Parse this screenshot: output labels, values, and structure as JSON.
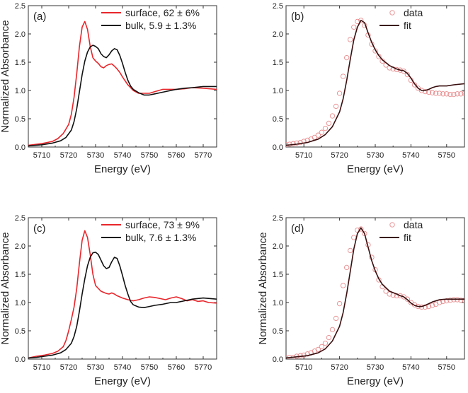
{
  "colors": {
    "surface": "#e8262b",
    "bulk": "#111111",
    "data": "#e88a8c",
    "fit": "#3a0f0f",
    "axis": "#333333"
  },
  "chart_data": [
    {
      "id": "a",
      "type": "line",
      "panel_label": "(a)",
      "xlabel": "Energy (eV)",
      "ylabel": "Normalized Absorbance",
      "xlim": [
        5705,
        5775
      ],
      "ylim": [
        0,
        2.5
      ],
      "xticks": [
        5710,
        5720,
        5730,
        5740,
        5750,
        5760,
        5770
      ],
      "yticks": [
        0.0,
        0.5,
        1.0,
        1.5,
        2.0,
        2.5
      ],
      "legend": "top-right",
      "series": [
        {
          "name": "surface, 62 ± 6%",
          "style": "line",
          "color_key": "surface",
          "x": [
            5705,
            5710,
            5714,
            5716,
            5718,
            5720,
            5721,
            5722,
            5723,
            5724,
            5725,
            5726,
            5727,
            5728,
            5729,
            5730,
            5731,
            5732,
            5733,
            5734,
            5735,
            5736,
            5737,
            5738,
            5739,
            5740,
            5742,
            5744,
            5746,
            5748,
            5750,
            5752,
            5755,
            5758,
            5760,
            5763,
            5766,
            5770,
            5775
          ],
          "y": [
            0.03,
            0.06,
            0.1,
            0.15,
            0.24,
            0.4,
            0.58,
            0.88,
            1.3,
            1.78,
            2.12,
            2.22,
            2.08,
            1.78,
            1.58,
            1.52,
            1.48,
            1.42,
            1.4,
            1.44,
            1.46,
            1.47,
            1.43,
            1.38,
            1.32,
            1.24,
            1.1,
            1.0,
            0.95,
            0.95,
            0.95,
            0.98,
            1.02,
            1.02,
            1.02,
            1.03,
            1.05,
            1.04,
            1.02
          ]
        },
        {
          "name": "bulk, 5.9 ± 1.3%",
          "style": "line",
          "color_key": "bulk",
          "x": [
            5705,
            5710,
            5714,
            5717,
            5719,
            5721,
            5722,
            5723,
            5724,
            5725,
            5726,
            5727,
            5728,
            5729,
            5730,
            5731,
            5732,
            5733,
            5734,
            5735,
            5736,
            5737,
            5738,
            5739,
            5740,
            5741,
            5742,
            5743,
            5744,
            5746,
            5748,
            5750,
            5752,
            5755,
            5758,
            5760,
            5763,
            5766,
            5770,
            5775
          ],
          "y": [
            0.02,
            0.04,
            0.07,
            0.11,
            0.17,
            0.3,
            0.45,
            0.68,
            0.98,
            1.28,
            1.52,
            1.68,
            1.77,
            1.8,
            1.78,
            1.74,
            1.65,
            1.6,
            1.58,
            1.63,
            1.7,
            1.74,
            1.72,
            1.62,
            1.48,
            1.32,
            1.18,
            1.08,
            1.02,
            0.96,
            0.92,
            0.92,
            0.94,
            0.97,
            1.0,
            1.02,
            1.04,
            1.05,
            1.07,
            1.07
          ]
        }
      ]
    },
    {
      "id": "b",
      "type": "scatter",
      "panel_label": "(b)",
      "xlabel": "Energy (eV)",
      "ylabel": "",
      "xlim": [
        5705,
        5755
      ],
      "ylim": [
        0,
        2.5
      ],
      "xticks": [
        5710,
        5720,
        5730,
        5740,
        5750
      ],
      "yticks": [
        0.0,
        0.5,
        1.0,
        1.5,
        2.0,
        2.5
      ],
      "legend": "top-right",
      "series": [
        {
          "name": "data",
          "style": "markers",
          "color_key": "data",
          "x": [
            5705,
            5706,
            5707,
            5708,
            5709,
            5710,
            5711,
            5712,
            5713,
            5714,
            5715,
            5716,
            5717,
            5718,
            5719,
            5720,
            5721,
            5722,
            5723,
            5724,
            5725,
            5726,
            5727,
            5728,
            5729,
            5730,
            5731,
            5732,
            5733,
            5734,
            5735,
            5736,
            5737,
            5738,
            5739,
            5740,
            5741,
            5742,
            5743,
            5744,
            5745,
            5746,
            5747,
            5748,
            5749,
            5750,
            5751,
            5752,
            5753,
            5754,
            5755
          ],
          "y": [
            0.04,
            0.05,
            0.06,
            0.07,
            0.08,
            0.1,
            0.12,
            0.14,
            0.17,
            0.21,
            0.26,
            0.33,
            0.42,
            0.55,
            0.72,
            0.95,
            1.25,
            1.58,
            1.9,
            2.12,
            2.22,
            2.24,
            2.15,
            1.98,
            1.82,
            1.7,
            1.6,
            1.52,
            1.45,
            1.4,
            1.38,
            1.37,
            1.36,
            1.34,
            1.28,
            1.18,
            1.1,
            1.04,
            1.0,
            0.98,
            0.97,
            0.96,
            0.95,
            0.95,
            0.94,
            0.94,
            0.93,
            0.93,
            0.94,
            0.94,
            0.95
          ]
        },
        {
          "name": "fit",
          "style": "line",
          "color_key": "fit",
          "x": [
            5705,
            5708,
            5711,
            5714,
            5716,
            5718,
            5720,
            5721,
            5722,
            5723,
            5724,
            5725,
            5726,
            5727,
            5728,
            5729,
            5730,
            5731,
            5732,
            5734,
            5736,
            5737,
            5738,
            5739,
            5740,
            5741,
            5742,
            5743,
            5744,
            5745,
            5746,
            5747,
            5748,
            5750,
            5752,
            5755
          ],
          "y": [
            0.03,
            0.05,
            0.08,
            0.14,
            0.22,
            0.36,
            0.62,
            0.85,
            1.18,
            1.55,
            1.9,
            2.12,
            2.24,
            2.2,
            2.02,
            1.85,
            1.72,
            1.62,
            1.54,
            1.44,
            1.38,
            1.36,
            1.35,
            1.3,
            1.22,
            1.12,
            1.04,
            1.0,
            1.0,
            1.02,
            1.05,
            1.07,
            1.08,
            1.08,
            1.1,
            1.12
          ]
        }
      ]
    },
    {
      "id": "c",
      "type": "line",
      "panel_label": "(c)",
      "xlabel": "Energy (eV)",
      "ylabel": "Normalized Absorbance",
      "xlim": [
        5705,
        5775
      ],
      "ylim": [
        0,
        2.5
      ],
      "xticks": [
        5710,
        5720,
        5730,
        5740,
        5750,
        5760,
        5770
      ],
      "yticks": [
        0.0,
        0.5,
        1.0,
        1.5,
        2.0,
        2.5
      ],
      "legend": "top-right",
      "series": [
        {
          "name": "surface, 73 ± 9%",
          "style": "line",
          "color_key": "surface",
          "x": [
            5705,
            5708,
            5711,
            5714,
            5716,
            5718,
            5719,
            5720,
            5721,
            5722,
            5723,
            5724,
            5725,
            5726,
            5727,
            5728,
            5729,
            5730,
            5731,
            5732,
            5733,
            5734,
            5735,
            5736,
            5737,
            5738,
            5740,
            5742,
            5744,
            5746,
            5748,
            5750,
            5752,
            5754,
            5756,
            5758,
            5760,
            5762,
            5764,
            5766,
            5768,
            5770,
            5772,
            5775
          ],
          "y": [
            0.02,
            0.05,
            0.07,
            0.1,
            0.14,
            0.22,
            0.33,
            0.5,
            0.7,
            0.92,
            1.25,
            1.7,
            2.1,
            2.27,
            2.15,
            1.85,
            1.5,
            1.3,
            1.25,
            1.2,
            1.18,
            1.16,
            1.15,
            1.17,
            1.15,
            1.12,
            1.08,
            1.05,
            1.03,
            1.05,
            1.08,
            1.1,
            1.09,
            1.07,
            1.05,
            1.08,
            1.1,
            1.07,
            1.03,
            1.05,
            1.02,
            1.03,
            1.0,
            0.99
          ]
        },
        {
          "name": "bulk, 7.6 ± 1.3%",
          "style": "line",
          "color_key": "bulk",
          "x": [
            5705,
            5708,
            5711,
            5714,
            5717,
            5719,
            5721,
            5722,
            5723,
            5724,
            5725,
            5726,
            5727,
            5728,
            5729,
            5730,
            5731,
            5732,
            5733,
            5734,
            5735,
            5736,
            5737,
            5738,
            5739,
            5740,
            5741,
            5742,
            5743,
            5744,
            5746,
            5748,
            5750,
            5752,
            5755,
            5758,
            5760,
            5763,
            5766,
            5770,
            5775
          ],
          "y": [
            0.02,
            0.03,
            0.05,
            0.07,
            0.11,
            0.17,
            0.28,
            0.4,
            0.58,
            0.85,
            1.15,
            1.42,
            1.65,
            1.8,
            1.88,
            1.89,
            1.85,
            1.75,
            1.65,
            1.6,
            1.62,
            1.72,
            1.8,
            1.78,
            1.65,
            1.48,
            1.3,
            1.15,
            1.02,
            0.96,
            0.92,
            0.91,
            0.93,
            0.95,
            0.97,
            1.0,
            1.0,
            1.03,
            1.06,
            1.08,
            1.06
          ]
        }
      ]
    },
    {
      "id": "d",
      "type": "scatter",
      "panel_label": "(d)",
      "xlabel": "Energy (eV)",
      "ylabel": "Normalized Absorbance",
      "xlim": [
        5705,
        5755
      ],
      "ylim": [
        0,
        2.5
      ],
      "xticks": [
        5710,
        5720,
        5730,
        5740,
        5750
      ],
      "yticks": [
        0.0,
        0.5,
        1.0,
        1.5,
        2.0,
        2.5
      ],
      "legend": "top-right",
      "series": [
        {
          "name": "data",
          "style": "markers",
          "color_key": "data",
          "x": [
            5705,
            5706,
            5707,
            5708,
            5709,
            5710,
            5711,
            5712,
            5713,
            5714,
            5715,
            5716,
            5717,
            5718,
            5719,
            5720,
            5721,
            5722,
            5723,
            5724,
            5725,
            5726,
            5727,
            5728,
            5729,
            5730,
            5731,
            5732,
            5733,
            5734,
            5735,
            5736,
            5737,
            5738,
            5739,
            5740,
            5741,
            5742,
            5743,
            5744,
            5745,
            5746,
            5747,
            5748,
            5749,
            5750,
            5751,
            5752,
            5753,
            5754,
            5755
          ],
          "y": [
            0.02,
            0.03,
            0.03,
            0.05,
            0.06,
            0.07,
            0.09,
            0.11,
            0.14,
            0.17,
            0.22,
            0.28,
            0.38,
            0.52,
            0.72,
            0.98,
            1.3,
            1.62,
            1.92,
            2.15,
            2.28,
            2.3,
            2.22,
            2.02,
            1.8,
            1.58,
            1.4,
            1.28,
            1.2,
            1.15,
            1.13,
            1.12,
            1.12,
            1.1,
            1.06,
            1.0,
            0.96,
            0.93,
            0.92,
            0.92,
            0.93,
            0.95,
            0.97,
            1.0,
            1.02,
            1.03,
            1.04,
            1.05,
            1.05,
            1.04,
            1.04
          ]
        },
        {
          "name": "fit",
          "style": "line",
          "color_key": "fit",
          "x": [
            5705,
            5708,
            5711,
            5714,
            5716,
            5718,
            5720,
            5721,
            5722,
            5723,
            5724,
            5725,
            5726,
            5727,
            5728,
            5729,
            5730,
            5731,
            5732,
            5734,
            5736,
            5737,
            5738,
            5739,
            5740,
            5741,
            5742,
            5743,
            5744,
            5745,
            5746,
            5748,
            5750,
            5752,
            5755
          ],
          "y": [
            0.02,
            0.04,
            0.06,
            0.11,
            0.18,
            0.32,
            0.58,
            0.82,
            1.16,
            1.55,
            1.95,
            2.22,
            2.32,
            2.22,
            1.98,
            1.74,
            1.56,
            1.42,
            1.32,
            1.2,
            1.15,
            1.12,
            1.1,
            1.05,
            0.99,
            0.95,
            0.93,
            0.93,
            0.95,
            0.98,
            1.01,
            1.05,
            1.06,
            1.06,
            1.06
          ]
        }
      ]
    }
  ]
}
